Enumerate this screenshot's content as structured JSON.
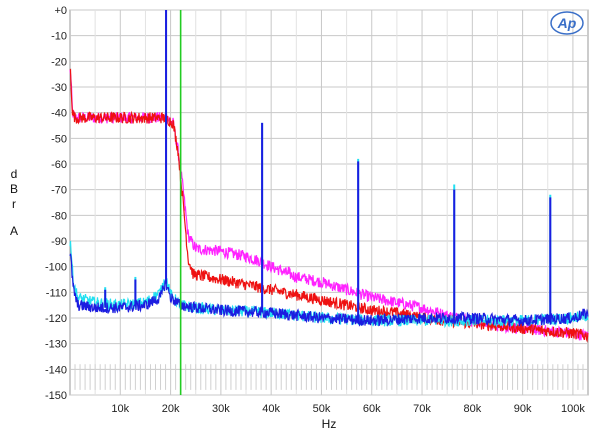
{
  "chart_data": {
    "type": "line",
    "title": "",
    "xlabel": "Hz",
    "ylabel_chars": [
      "d",
      "B",
      "r",
      "A"
    ],
    "xlim": [
      0,
      103000
    ],
    "ylim": [
      -150,
      0
    ],
    "x_ticks": [
      10000,
      20000,
      30000,
      40000,
      50000,
      60000,
      70000,
      80000,
      90000,
      100000
    ],
    "x_tick_labels": [
      "10k",
      "20k",
      "30k",
      "40k",
      "50k",
      "60k",
      "70k",
      "80k",
      "90k",
      "100k"
    ],
    "y_ticks": [
      0,
      -10,
      -20,
      -30,
      -40,
      -50,
      -60,
      -70,
      -80,
      -90,
      -100,
      -110,
      -120,
      -130,
      -140,
      -150
    ],
    "y_tick_labels": [
      "+0",
      "-10",
      "-20",
      "-30",
      "-40",
      "-50",
      "-60",
      "-70",
      "-80",
      "-90",
      "-100",
      "-110",
      "-120",
      "-130",
      "-140",
      "-150"
    ],
    "grid": true,
    "logo": "Ap",
    "marker": {
      "x": 22000,
      "color": "#22cc22"
    },
    "series": [
      {
        "color": "#ff22ff",
        "points": [
          [
            100,
            -24
          ],
          [
            500,
            -40
          ],
          [
            1000,
            -42
          ],
          [
            5000,
            -42
          ],
          [
            10000,
            -42
          ],
          [
            15000,
            -42
          ],
          [
            19000,
            -42
          ],
          [
            20500,
            -44
          ],
          [
            21500,
            -55
          ],
          [
            22500,
            -70
          ],
          [
            23500,
            -88
          ],
          [
            25000,
            -93
          ],
          [
            30000,
            -94
          ],
          [
            35000,
            -96
          ],
          [
            38000,
            -98
          ],
          [
            40000,
            -100
          ],
          [
            45000,
            -104
          ],
          [
            50000,
            -106
          ],
          [
            55000,
            -109
          ],
          [
            60000,
            -112
          ],
          [
            65000,
            -114
          ],
          [
            70000,
            -116
          ],
          [
            75000,
            -119
          ],
          [
            80000,
            -121
          ],
          [
            85000,
            -123
          ],
          [
            90000,
            -124
          ],
          [
            95000,
            -125
          ],
          [
            100000,
            -126
          ],
          [
            103000,
            -127
          ]
        ],
        "peaks": [
          [
            43500,
            -100
          ]
        ]
      },
      {
        "color": "#ee1111",
        "points": [
          [
            100,
            -24
          ],
          [
            500,
            -40
          ],
          [
            1000,
            -42
          ],
          [
            5000,
            -42
          ],
          [
            10000,
            -42
          ],
          [
            15000,
            -42
          ],
          [
            19000,
            -42
          ],
          [
            20500,
            -44
          ],
          [
            21500,
            -55
          ],
          [
            22500,
            -75
          ],
          [
            23500,
            -97
          ],
          [
            24500,
            -103
          ],
          [
            30000,
            -105
          ],
          [
            35000,
            -107
          ],
          [
            40000,
            -109
          ],
          [
            45000,
            -111
          ],
          [
            50000,
            -113
          ],
          [
            55000,
            -115
          ],
          [
            60000,
            -117
          ],
          [
            65000,
            -118
          ],
          [
            70000,
            -120
          ],
          [
            75000,
            -121
          ],
          [
            80000,
            -122
          ],
          [
            85000,
            -123
          ],
          [
            90000,
            -124
          ],
          [
            95000,
            -125
          ],
          [
            100000,
            -126
          ],
          [
            103000,
            -127
          ]
        ],
        "peaks": []
      },
      {
        "color": "#22e0f0",
        "points": [
          [
            100,
            -90
          ],
          [
            600,
            -105
          ],
          [
            1500,
            -112
          ],
          [
            5000,
            -114
          ],
          [
            10000,
            -115
          ],
          [
            15000,
            -114
          ],
          [
            18000,
            -110
          ],
          [
            19000,
            -104
          ],
          [
            20000,
            -111
          ],
          [
            22000,
            -115
          ],
          [
            25000,
            -116
          ],
          [
            30000,
            -117
          ],
          [
            40000,
            -118
          ],
          [
            50000,
            -120
          ],
          [
            60000,
            -121
          ],
          [
            70000,
            -121
          ],
          [
            80000,
            -121
          ],
          [
            90000,
            -121
          ],
          [
            100000,
            -120
          ],
          [
            103000,
            -119
          ]
        ],
        "peaks": [
          [
            19100,
            0
          ],
          [
            38200,
            -44
          ],
          [
            57300,
            -58
          ],
          [
            76400,
            -68
          ],
          [
            95500,
            -72
          ],
          [
            7000,
            -108
          ],
          [
            13000,
            -104
          ]
        ]
      },
      {
        "color": "#1c1ce0",
        "points": [
          [
            100,
            -95
          ],
          [
            600,
            -108
          ],
          [
            1500,
            -115
          ],
          [
            5000,
            -116
          ],
          [
            10000,
            -116
          ],
          [
            15000,
            -115
          ],
          [
            18000,
            -112
          ],
          [
            19000,
            -106
          ],
          [
            20000,
            -112
          ],
          [
            22000,
            -115
          ],
          [
            25000,
            -116
          ],
          [
            30000,
            -117
          ],
          [
            40000,
            -118
          ],
          [
            50000,
            -120
          ],
          [
            60000,
            -121
          ],
          [
            70000,
            -120
          ],
          [
            80000,
            -120
          ],
          [
            90000,
            -121
          ],
          [
            100000,
            -120
          ],
          [
            103000,
            -118
          ]
        ],
        "peaks": [
          [
            19100,
            0
          ],
          [
            38200,
            -44
          ],
          [
            57300,
            -59
          ],
          [
            76400,
            -70
          ],
          [
            95500,
            -73
          ],
          [
            7000,
            -109
          ],
          [
            13000,
            -105
          ]
        ]
      }
    ]
  }
}
